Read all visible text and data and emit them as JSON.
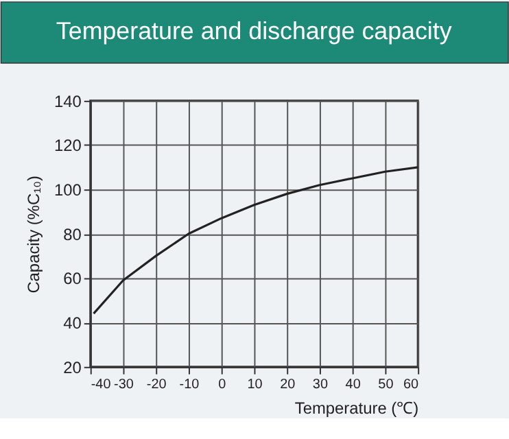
{
  "chart_data": {
    "type": "line",
    "title": "Temperature and discharge capacity",
    "xlabel": "Temperature (℃)",
    "ylabel": "Capacity (%C₁₀)",
    "x": [
      -39,
      -30,
      -20,
      -10,
      0,
      10,
      20,
      30,
      40,
      50,
      60
    ],
    "series": [
      {
        "color": "#222222",
        "values": [
          44,
          59,
          70,
          80,
          87,
          93,
          98,
          102,
          105,
          108,
          110
        ]
      }
    ],
    "xlim": [
      -40,
      60
    ],
    "xticks": [
      -40,
      -30,
      -20,
      -10,
      0,
      10,
      20,
      30,
      40,
      50,
      60
    ],
    "ylim": [
      20,
      140
    ],
    "yticks": [
      20,
      40,
      60,
      80,
      100,
      120,
      140
    ],
    "grid": true,
    "marker": "none",
    "line_style": "solid"
  }
}
